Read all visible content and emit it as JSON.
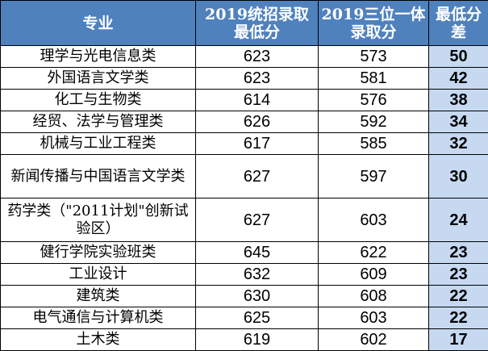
{
  "table": {
    "headers": {
      "major": "专业",
      "general": "2019统招录取最低分",
      "three_in_one": "2019三位一体录取分",
      "difference": "最低分差"
    },
    "rows": [
      {
        "major": "理学与光电信息类",
        "general": "623",
        "three_in_one": "573",
        "difference": "50"
      },
      {
        "major": "外国语言文学类",
        "general": "623",
        "three_in_one": "581",
        "difference": "42"
      },
      {
        "major": "化工与生物类",
        "general": "614",
        "three_in_one": "576",
        "difference": "38"
      },
      {
        "major": "经贸、法学与管理类",
        "general": "626",
        "three_in_one": "592",
        "difference": "34"
      },
      {
        "major": "机械与工业工程类",
        "general": "617",
        "three_in_one": "585",
        "difference": "32"
      },
      {
        "major": "新闻传播与中国语言文学类",
        "general": "627",
        "three_in_one": "597",
        "difference": "30"
      },
      {
        "major": "药学类（\"2011计划\"创新试验区）",
        "general": "627",
        "three_in_one": "603",
        "difference": "24"
      },
      {
        "major": "健行学院实验班类",
        "general": "645",
        "three_in_one": "622",
        "difference": "23"
      },
      {
        "major": "工业设计",
        "general": "632",
        "three_in_one": "609",
        "difference": "23"
      },
      {
        "major": "建筑类",
        "general": "630",
        "three_in_one": "608",
        "difference": "22"
      },
      {
        "major": "电气通信与计算机类",
        "general": "625",
        "three_in_one": "603",
        "difference": "22"
      },
      {
        "major": "土木类",
        "general": "619",
        "three_in_one": "602",
        "difference": "17"
      }
    ]
  }
}
